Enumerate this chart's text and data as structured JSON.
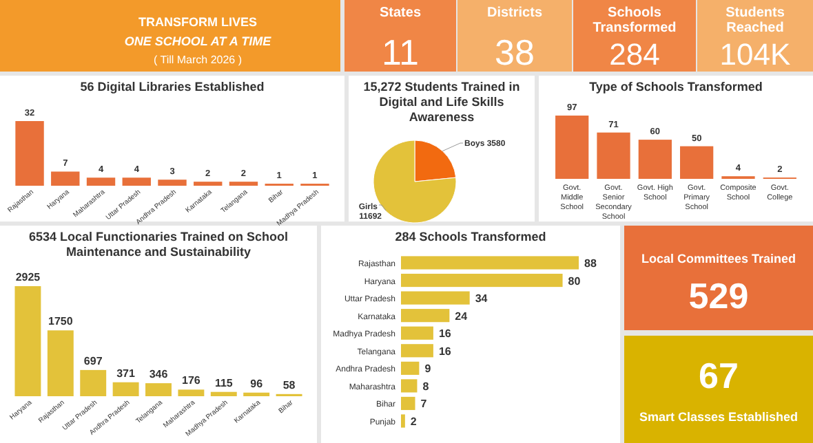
{
  "chart_data": [
    {
      "type": "other",
      "title": "TRANSFORM LIVES",
      "subtitle": "ONE SCHOOL AT A TIME",
      "annotations": [
        "( Till March 2026 )"
      ],
      "color": "#f39a2a"
    },
    {
      "type": "other",
      "title": "States",
      "annotations": [
        "11"
      ],
      "color": "#f08646"
    },
    {
      "type": "other",
      "title": "Districts",
      "annotations": [
        "38"
      ],
      "color": "#f5b06a"
    },
    {
      "type": "other",
      "title": "Schools Transformed",
      "annotations": [
        "284"
      ],
      "color": "#f08646"
    },
    {
      "type": "other",
      "title": "Students Reached",
      "annotations": [
        "104K"
      ],
      "color": "#f5b06a"
    },
    {
      "type": "bar",
      "title": "56 Digital Libraries Established",
      "categories": [
        "Rajasthan",
        "Haryana",
        "Maharashtra",
        "Uttar Pradesh",
        "Andhra Pradesh",
        "Karnataka",
        "Telangana",
        "Bihar",
        "Madhya Pradesh"
      ],
      "values": [
        32,
        7,
        4,
        4,
        3,
        2,
        2,
        1,
        1
      ],
      "color": "#e8703a",
      "data_labels": true
    },
    {
      "type": "pie",
      "title": "15,272 Students Trained in Digital and Life Skills Awareness",
      "categories": [
        "Boys",
        "Girls"
      ],
      "values": [
        3580,
        11692
      ],
      "colors": [
        "#f26a10",
        "#e3c23a"
      ],
      "data_labels": true
    },
    {
      "type": "bar",
      "title": "Type of Schools Transformed",
      "categories": [
        "Govt. Middle School",
        "Govt. Senior Secondary School",
        "Govt. High School",
        "Govt. Primary School",
        "Composite School",
        "Govt. College"
      ],
      "values": [
        97,
        71,
        60,
        50,
        4,
        2
      ],
      "color": "#e8703a",
      "data_labels": true
    },
    {
      "type": "bar",
      "title": "6534 Local Functionaries Trained on School Maintenance and Sustainability",
      "categories": [
        "Haryana",
        "Rajasthan",
        "Uttar Pradesh",
        "Andhra Pradesh",
        "Telangana",
        "Maharashtra",
        "Madhya Pradesh",
        "Karnataka",
        "Bihar"
      ],
      "values": [
        2925,
        1750,
        697,
        371,
        346,
        176,
        115,
        96,
        58
      ],
      "color": "#e3c23a",
      "data_labels": true
    },
    {
      "type": "bar",
      "orientation": "horizontal",
      "title": "284 Schools Transformed",
      "categories": [
        "Rajasthan",
        "Haryana",
        "Uttar Pradesh",
        "Karnataka",
        "Madhya Pradesh",
        "Telangana",
        "Andhra Pradesh",
        "Maharashtra",
        "Bihar",
        "Punjab"
      ],
      "values": [
        88,
        80,
        34,
        24,
        16,
        16,
        9,
        8,
        7,
        2
      ],
      "color": "#e3c23a",
      "data_labels": true
    },
    {
      "type": "other",
      "title": "Local Committees Trained",
      "annotations": [
        "529"
      ],
      "color": "#e8703a"
    },
    {
      "type": "other",
      "title": "Smart Classes Established",
      "annotations": [
        "67"
      ],
      "color": "#d9b300"
    }
  ]
}
